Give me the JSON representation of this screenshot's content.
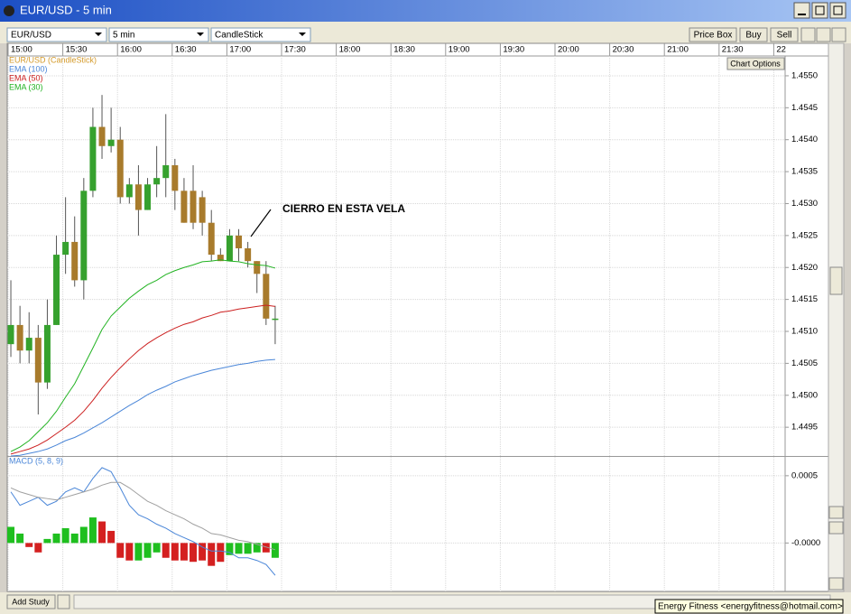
{
  "window": {
    "title": "EUR/USD - 5 min"
  },
  "toolbar": {
    "symbol": "EUR/USD",
    "interval": "5 min",
    "style": "CandleStick",
    "buttons": [
      "Price Box",
      "Buy",
      "Sell"
    ],
    "chart_options": "Chart Options"
  },
  "footer": {
    "add_study": "Add Study",
    "status": "Energy Fitness <energyfitness@hotmail.com>"
  },
  "chart_data": [
    {
      "type": "candlestick",
      "annotation": "CIERRO EN ESTA VELA",
      "xticks": [
        "15:00",
        "15:30",
        "16:00",
        "16:30",
        "17:00",
        "17:30",
        "18:00",
        "18:30",
        "19:00",
        "19:30",
        "20:00",
        "20:30",
        "21:00",
        "21:30",
        "22"
      ],
      "ylim": [
        1.44905,
        1.45531
      ],
      "yticks": [
        {
          "value": 1.4495,
          "label": "1.4495"
        },
        {
          "value": 1.45,
          "label": "1.4500"
        },
        {
          "value": 1.4505,
          "label": "1.4505"
        },
        {
          "value": 1.451,
          "label": "1.4510"
        },
        {
          "value": 1.4515,
          "label": "1.4515"
        },
        {
          "value": 1.452,
          "label": "1.4520"
        },
        {
          "value": 1.4525,
          "label": "1.4525"
        },
        {
          "value": 1.453,
          "label": "1.4530"
        },
        {
          "value": 1.4535,
          "label": "1.4535"
        },
        {
          "value": 1.454,
          "label": "1.4540"
        },
        {
          "value": 1.4545,
          "label": "1.4545"
        },
        {
          "value": 1.455,
          "label": "1.4550"
        }
      ],
      "grid": true,
      "series": [
        {
          "name": "EUR/USD (CandleStick)",
          "color": "#d49a2a",
          "up_color": "#36a12e",
          "down_color": "#a87b2c",
          "open": [
            1.4508,
            1.4511,
            1.4507,
            1.4509,
            1.4502,
            1.4511,
            1.4522,
            1.4524,
            1.4518,
            1.4532,
            1.4542,
            1.4539,
            1.454,
            1.4531,
            1.4533,
            1.4529,
            1.4533,
            1.4534,
            1.4536,
            1.4532,
            1.4532,
            1.4531,
            1.4527,
            1.4522,
            1.4521,
            1.4525,
            1.4523,
            1.4521,
            1.4519,
            1.4512
          ],
          "high": [
            1.4518,
            1.4514,
            1.4513,
            1.4511,
            1.4515,
            1.4525,
            1.4531,
            1.4528,
            1.4534,
            1.4545,
            1.4547,
            1.4545,
            1.4542,
            1.4534,
            1.4536,
            1.4534,
            1.4539,
            1.4544,
            1.4537,
            1.4534,
            1.4536,
            1.4532,
            1.4529,
            1.4523,
            1.4526,
            1.4526,
            1.4524,
            1.4521,
            1.4521,
            1.4514
          ],
          "low": [
            1.4506,
            1.4505,
            1.4505,
            1.4497,
            1.4501,
            1.4511,
            1.4519,
            1.4517,
            1.4515,
            1.4531,
            1.4537,
            1.4538,
            1.453,
            1.453,
            1.4525,
            1.4529,
            1.4531,
            1.4531,
            1.4529,
            1.4527,
            1.4526,
            1.4525,
            1.4521,
            1.4521,
            1.4521,
            1.4521,
            1.452,
            1.4516,
            1.4511,
            1.4508
          ],
          "close": [
            1.4511,
            1.4507,
            1.4509,
            1.4502,
            1.4511,
            1.4522,
            1.4524,
            1.4518,
            1.4532,
            1.4542,
            1.4539,
            1.454,
            1.4531,
            1.4533,
            1.4529,
            1.4533,
            1.4534,
            1.4536,
            1.4532,
            1.4527,
            1.4527,
            1.4527,
            1.4522,
            1.4521,
            1.4525,
            1.4523,
            1.4521,
            1.4519,
            1.4512,
            1.4512
          ]
        },
        {
          "name": "EMA (100)",
          "color": "#4a86d8",
          "values": [
            1.44905,
            1.44906,
            1.44909,
            1.44912,
            1.44916,
            1.44922,
            1.44929,
            1.44934,
            1.44941,
            1.44949,
            1.44957,
            1.44966,
            1.44975,
            1.44984,
            1.44992,
            1.45001,
            1.45008,
            1.45014,
            1.45021,
            1.45026,
            1.45031,
            1.45035,
            1.45039,
            1.45042,
            1.45045,
            1.45048,
            1.4505,
            1.45053,
            1.45055,
            1.45056
          ]
        },
        {
          "name": "EMA (50)",
          "color": "#cc2020",
          "values": [
            1.44908,
            1.44912,
            1.44916,
            1.44922,
            1.4493,
            1.4494,
            1.4495,
            1.44961,
            1.44975,
            1.44992,
            1.45011,
            1.45028,
            1.45043,
            1.45057,
            1.4507,
            1.45081,
            1.4509,
            1.45098,
            1.45105,
            1.45111,
            1.45115,
            1.45121,
            1.45125,
            1.4513,
            1.45132,
            1.45135,
            1.45137,
            1.45139,
            1.45141,
            1.45139
          ]
        },
        {
          "name": "EMA (30)",
          "color": "#22b322",
          "values": [
            1.44912,
            1.44919,
            1.44929,
            1.44943,
            1.44957,
            1.44975,
            1.44997,
            1.45018,
            1.45046,
            1.45074,
            1.45103,
            1.45124,
            1.45138,
            1.45152,
            1.45163,
            1.45173,
            1.4518,
            1.45189,
            1.45195,
            1.452,
            1.45204,
            1.45209,
            1.4521,
            1.45212,
            1.4521,
            1.45209,
            1.45206,
            1.45204,
            1.45203,
            1.45199
          ]
        }
      ]
    },
    {
      "type": "macd",
      "title": "MACD (5, 8, 9)",
      "title_color": "#4a86d8",
      "ylim": [
        -0.00036,
        0.00064
      ],
      "yticks": [
        {
          "value": 0,
          "label": "-0.0000"
        },
        0.0005
      ],
      "series": [
        {
          "colors": [
            "#1fbf1f",
            "#1fbf1f",
            "#d42020",
            "#d42020",
            "#1fbf1f",
            "#1fbf1f",
            "#1fbf1f",
            "#1fbf1f",
            "#1fbf1f",
            "#1fbf1f",
            "#d42020",
            "#d42020",
            "#d42020",
            "#d42020",
            "#1fbf1f",
            "#1fbf1f",
            "#1fbf1f",
            "#d42020",
            "#d42020",
            "#d42020",
            "#d42020",
            "#d42020",
            "#d42020",
            "#d42020",
            "#1fbf1f",
            "#1fbf1f",
            "#1fbf1f",
            "#1fbf1f",
            "#d42020",
            "#1fbf1f"
          ],
          "values": [
            0.00012,
            7e-05,
            -3e-05,
            -7e-05,
            3e-05,
            7e-05,
            0.00011,
            7e-05,
            0.00012,
            0.00019,
            0.00016,
            9e-05,
            -0.00011,
            -0.00013,
            -0.00013,
            -0.00011,
            -7e-05,
            -0.00011,
            -0.00013,
            -0.00013,
            -0.00014,
            -0.00013,
            -0.00017,
            -0.00014,
            -9e-05,
            -8e-05,
            -8e-05,
            -7e-05,
            -7e-05,
            -0.00011
          ]
        },
        {
          "color": "#4a86d8",
          "values": [
            0.00038,
            0.00028,
            0.00031,
            0.00034,
            0.00028,
            0.00031,
            0.00038,
            0.00041,
            0.00038,
            0.00048,
            0.00056,
            0.00053,
            0.00041,
            0.00028,
            0.00021,
            0.00018,
            0.00014,
            0.00011,
            7e-05,
            4e-05,
            1e-05,
            -3e-05,
            -6e-05,
            -6e-05,
            -7e-05,
            -0.00011,
            -0.00011,
            -0.00013,
            -0.00016,
            -0.00024
          ]
        },
        {
          "color": "#a0a0a0",
          "values": [
            0.00041,
            0.00038,
            0.00036,
            0.00034,
            0.00033,
            0.00032,
            0.00034,
            0.00036,
            0.00038,
            0.0004,
            0.00043,
            0.00045,
            0.00045,
            0.00041,
            0.00036,
            0.00031,
            0.00028,
            0.00024,
            0.00021,
            0.00018,
            0.00014,
            0.00011,
            7e-05,
            6e-05,
            4e-05,
            2e-05,
            1e-05,
            -1e-05,
            -3e-05,
            -5e-05
          ]
        }
      ]
    }
  ]
}
